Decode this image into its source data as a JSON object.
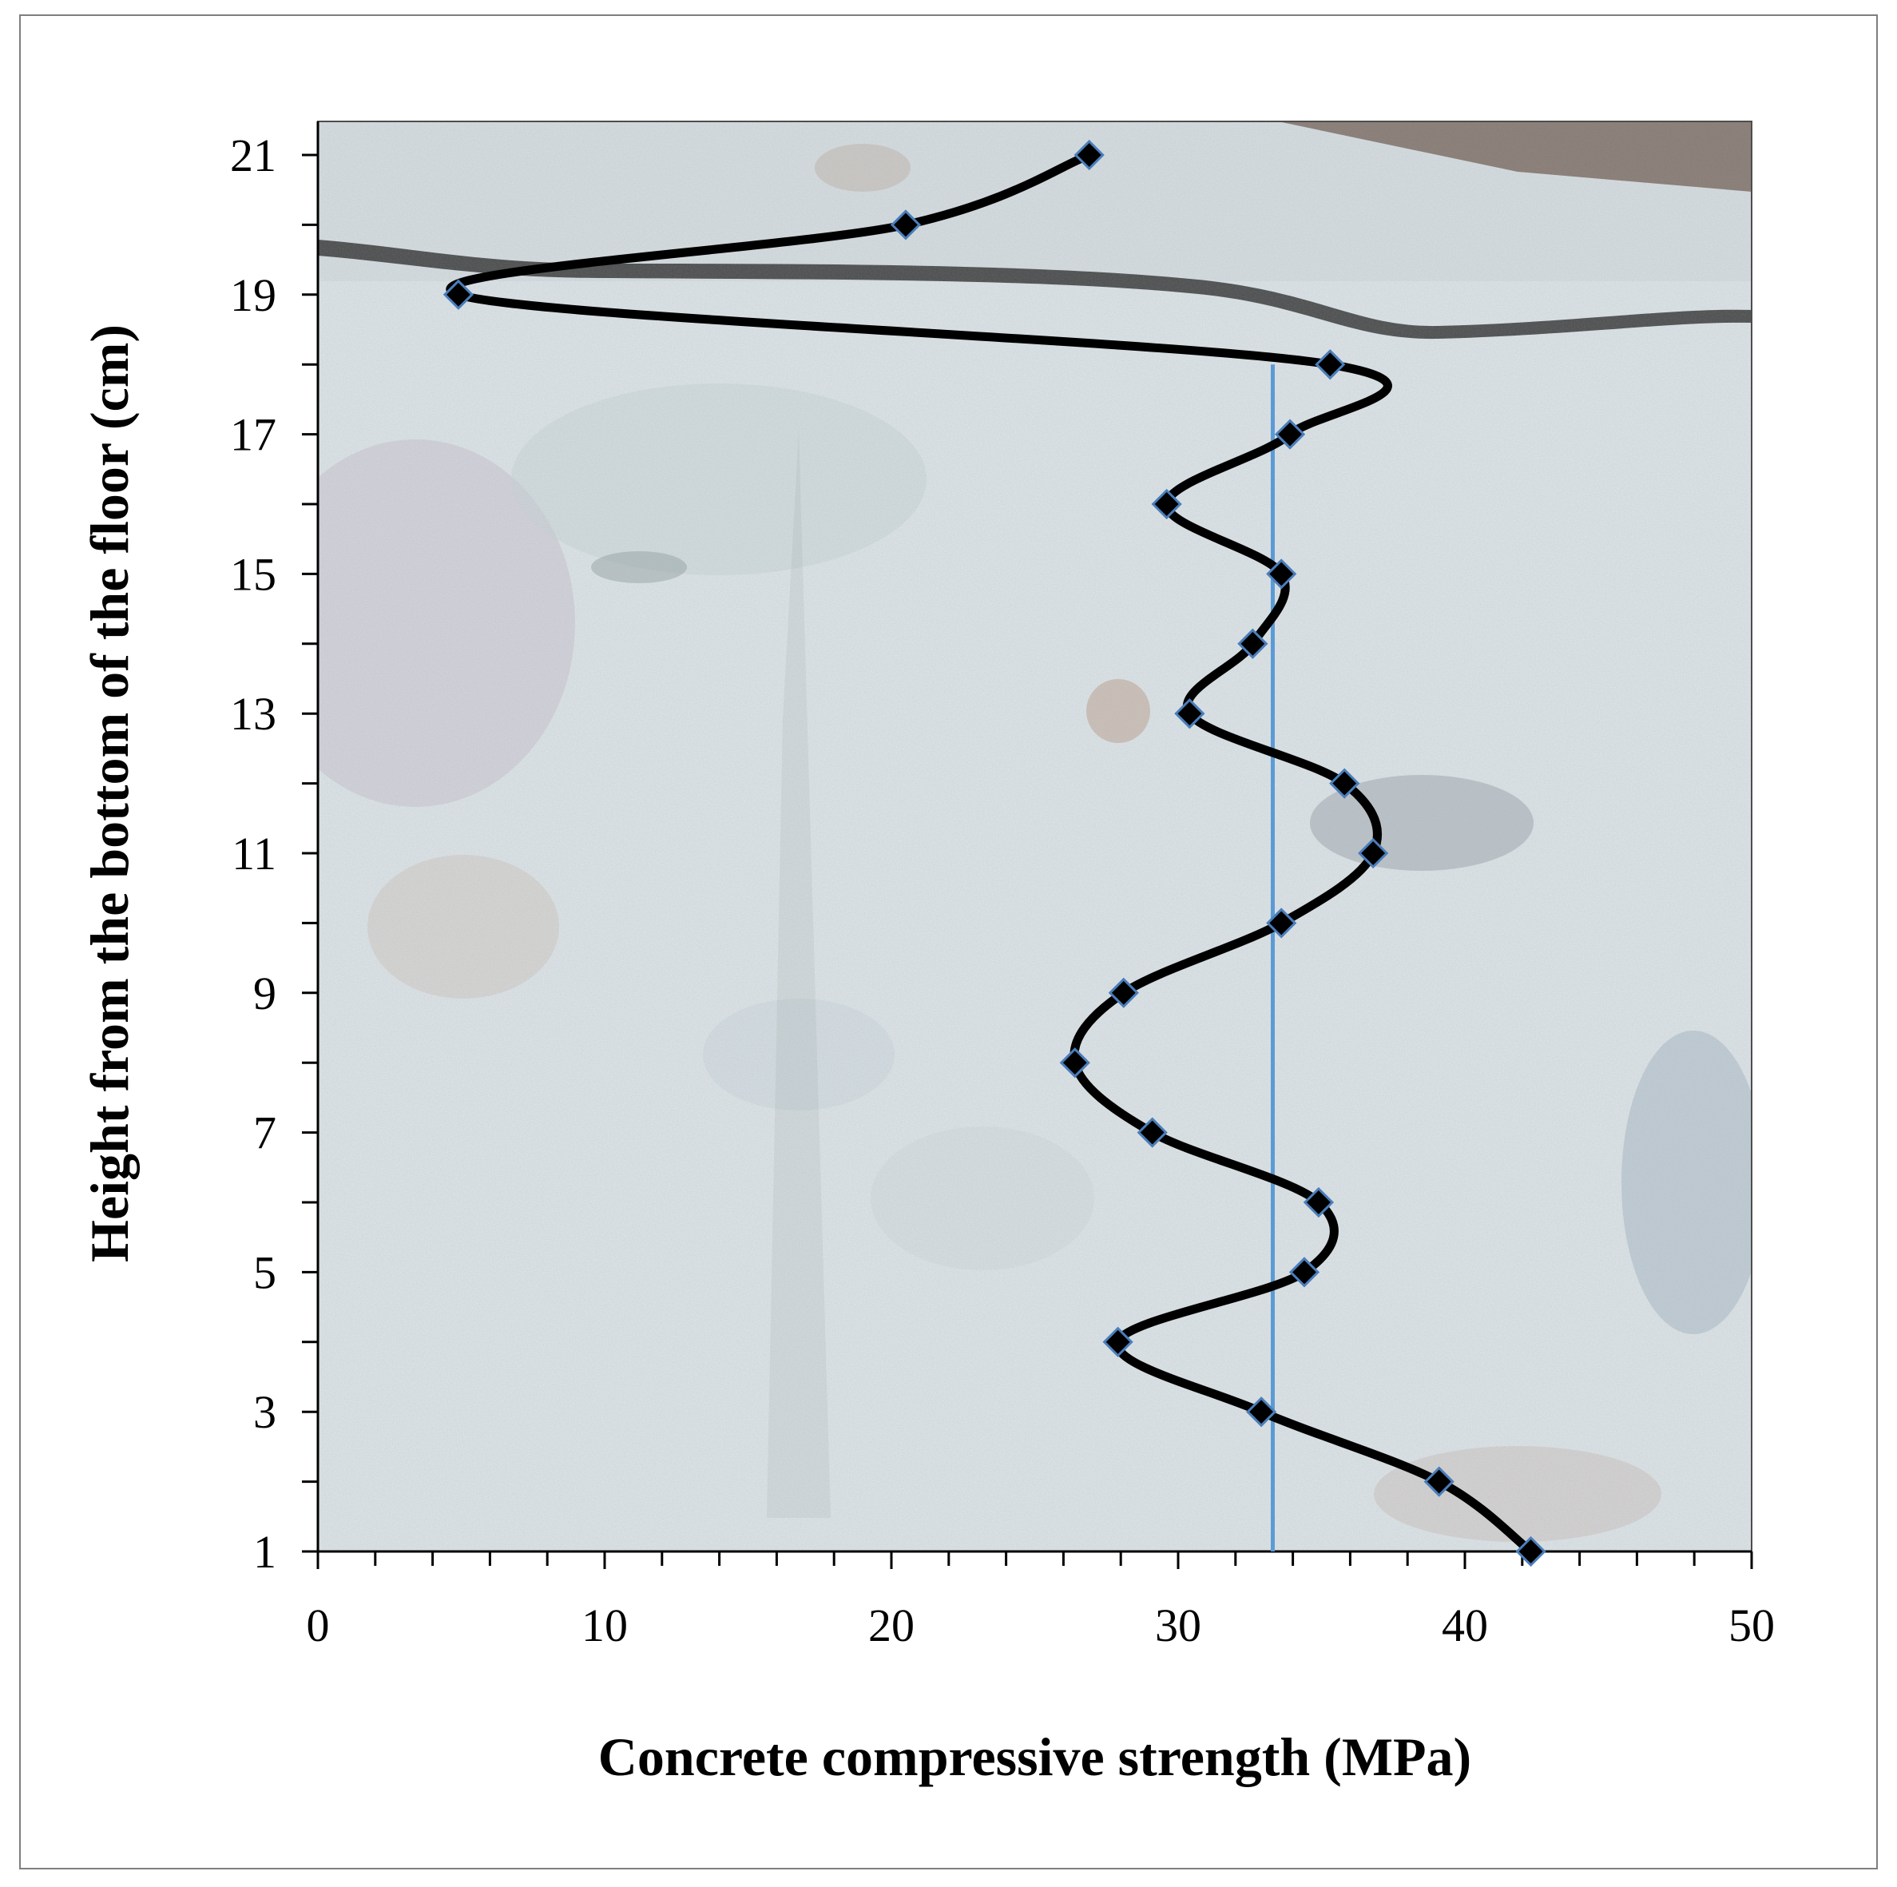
{
  "chart_data": {
    "type": "line",
    "title": "",
    "xlabel": "Concrete compressive strength (MPa)",
    "ylabel": "Height from the bottom of the floor (cm)",
    "xlim": [
      0,
      50
    ],
    "ylim": [
      1,
      21
    ],
    "x_ticks": [
      "0",
      "10",
      "20",
      "30",
      "40",
      "50"
    ],
    "y_ticks": [
      "1",
      "3",
      "5",
      "7",
      "9",
      "11",
      "13",
      "15",
      "17",
      "19",
      "21"
    ],
    "x_tick_values": [
      0,
      10,
      20,
      30,
      40,
      50
    ],
    "y_tick_values": [
      1,
      3,
      5,
      7,
      9,
      11,
      13,
      15,
      17,
      19,
      21
    ],
    "x_minor_step": 2,
    "y_minor_step": 1,
    "background": "photograph of cracked concrete floor cross-section",
    "grid": false,
    "series": [
      {
        "marker": "diamond",
        "smooth": true,
        "line_color": "#000000",
        "marker_color": "#000000",
        "marker_edge_color": "#4a7ebb",
        "points": [
          {
            "x": 42.3,
            "y": 1
          },
          {
            "x": 39.1,
            "y": 2
          },
          {
            "x": 32.9,
            "y": 3
          },
          {
            "x": 27.9,
            "y": 4
          },
          {
            "x": 34.4,
            "y": 5
          },
          {
            "x": 34.9,
            "y": 6
          },
          {
            "x": 29.1,
            "y": 7
          },
          {
            "x": 26.4,
            "y": 8
          },
          {
            "x": 28.1,
            "y": 9
          },
          {
            "x": 33.6,
            "y": 10
          },
          {
            "x": 36.8,
            "y": 11
          },
          {
            "x": 35.8,
            "y": 12
          },
          {
            "x": 30.4,
            "y": 13
          },
          {
            "x": 32.6,
            "y": 14
          },
          {
            "x": 33.6,
            "y": 15
          },
          {
            "x": 29.6,
            "y": 16
          },
          {
            "x": 33.9,
            "y": 17
          },
          {
            "x": 35.3,
            "y": 18
          },
          {
            "x": 4.9,
            "y": 19
          },
          {
            "x": 20.5,
            "y": 20
          },
          {
            "x": 26.9,
            "y": 21
          }
        ]
      }
    ],
    "reference_line": {
      "orientation": "vertical",
      "x": 33.3,
      "y_from": 1,
      "y_to": 18,
      "color": "#5b9bd5"
    }
  }
}
